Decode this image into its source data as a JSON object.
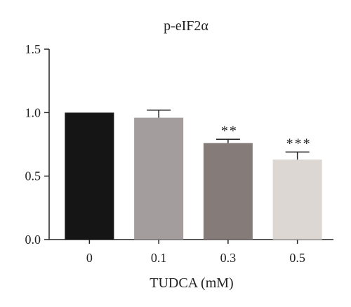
{
  "chart_data": {
    "type": "bar",
    "title": "p-eIF2α",
    "xlabel": "TUDCA (mM)",
    "ylabel": "",
    "categories": [
      "0",
      "0.1",
      "0.3",
      "0.5"
    ],
    "values": [
      1.0,
      0.96,
      0.76,
      0.63
    ],
    "errors": [
      0.0,
      0.06,
      0.03,
      0.06
    ],
    "significance": [
      "",
      "",
      "**",
      "***"
    ],
    "colors": [
      "#151515",
      "#a39e9d",
      "#857c79",
      "#dcd7d3"
    ],
    "ylim": [
      0,
      1.5
    ],
    "yticks": [
      "0.0",
      "0.5",
      "1.0",
      "1.5"
    ],
    "grid": false,
    "legend": false
  }
}
